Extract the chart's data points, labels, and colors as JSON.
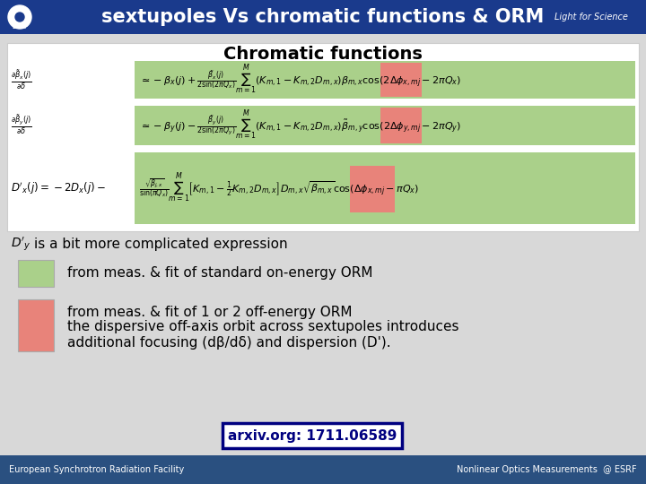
{
  "title": "sextupoles Vs chromatic functions & ORM",
  "subtitle": "Chromatic functions",
  "header_bg": "#1a3a8c",
  "header_text_color": "#FFFFFF",
  "slide_bg": "#d8d8d8",
  "white_box_bg": "#FFFFFF",
  "green_color": "#aad08a",
  "red_color": "#e8837a",
  "footer_bg": "#2a5080",
  "footer_text": "European Synchrotron Radiation Facility",
  "footer_right": "Nonlinear Optics Measurements  @ ESRF",
  "arxiv_text": "arxiv.org: 1711.06589",
  "legend_green_text": "from meas. & fit of standard on-energy ORM",
  "legend_red_line1": "from meas. & fit of 1 or 2 off-energy ORM",
  "legend_red_line2": "the dispersive off-axis orbit across sextupoles introduces",
  "legend_red_line3": "additional focusing (dβ/dδ) and dispersion (D').",
  "dy_text": "is a bit more complicated expression"
}
